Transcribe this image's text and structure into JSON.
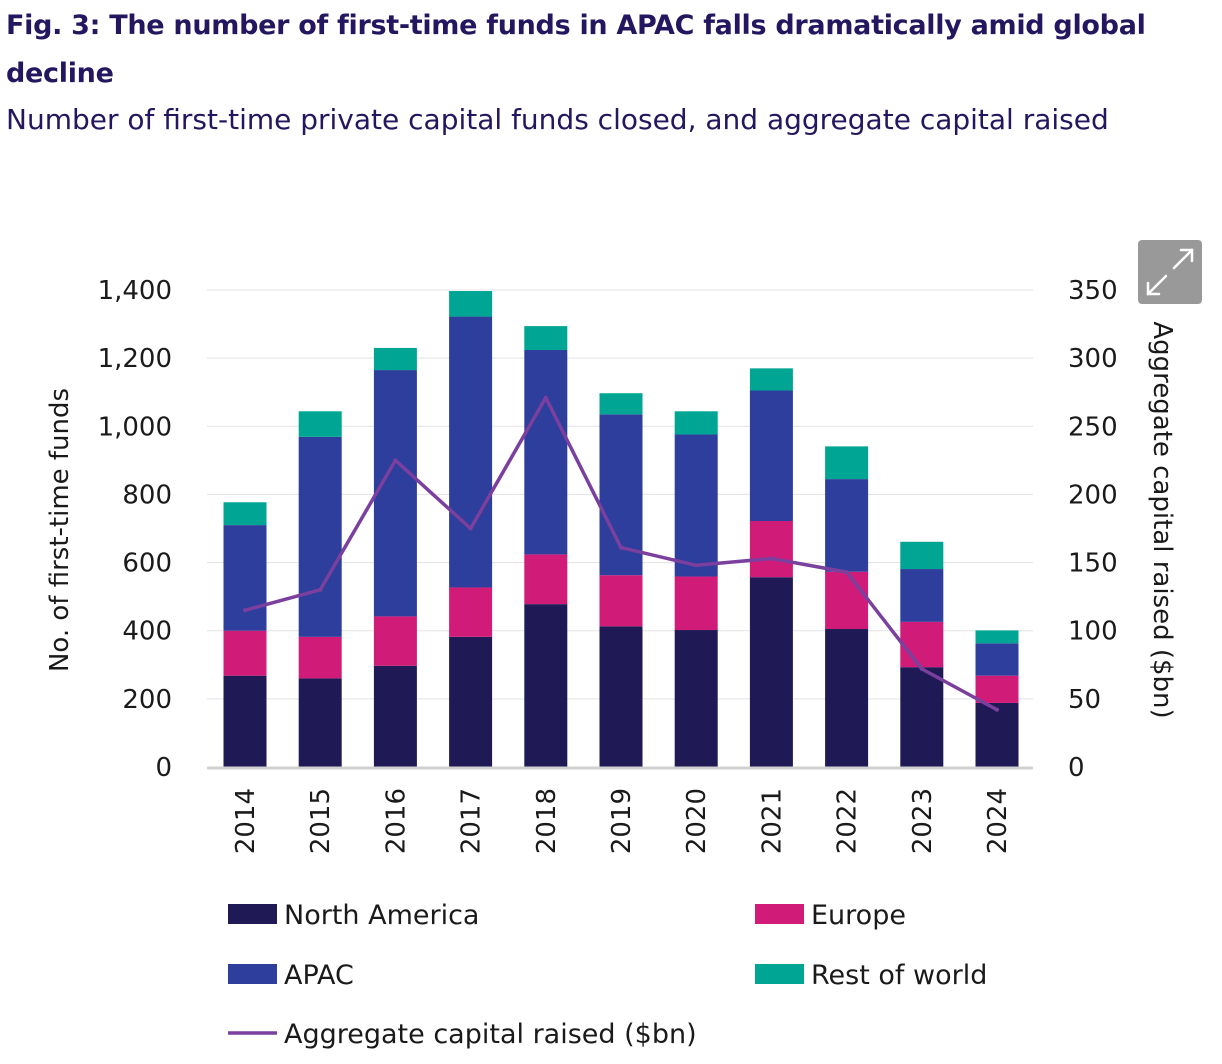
{
  "header": {
    "title": "Fig. 3: The number of first-time funds in APAC falls dramatically amid global decline",
    "subtitle": "Number of first-time private capital funds closed, and aggregate capital raised"
  },
  "chart_data": {
    "type": "bar",
    "stacked": true,
    "title": "Fig. 3: The number of first-time funds in APAC falls dramatically amid global decline",
    "subtitle": "Number of first-time private capital funds closed, and aggregate capital raised",
    "categories": [
      "2014",
      "2015",
      "2016",
      "2017",
      "2018",
      "2019",
      "2020",
      "2021",
      "2022",
      "2023",
      "2024"
    ],
    "series": [
      {
        "name": "North America",
        "color": "#1f1a56",
        "values": [
          268,
          260,
          297,
          382,
          478,
          413,
          402,
          557,
          405,
          293,
          188
        ]
      },
      {
        "name": "Europe",
        "color": "#d01c78",
        "values": [
          132,
          122,
          145,
          145,
          146,
          150,
          157,
          165,
          168,
          133,
          80
        ]
      },
      {
        "name": "APAC",
        "color": "#2d3e9c",
        "values": [
          310,
          587,
          723,
          795,
          600,
          472,
          417,
          383,
          272,
          155,
          95
        ]
      },
      {
        "name": "Rest of world",
        "color": "#00a693",
        "values": [
          67,
          75,
          65,
          75,
          70,
          62,
          68,
          65,
          96,
          80,
          38
        ]
      }
    ],
    "line_series": {
      "name": "Aggregate capital raised ($bn)",
      "color": "#7b3f9e",
      "axis": "right",
      "values": [
        115,
        130,
        225,
        175,
        271,
        161,
        148,
        153,
        143,
        72,
        42
      ]
    },
    "ylabel": "No. of first-time funds",
    "y2label": "Aggregate capital raised ($bn)",
    "ylim": [
      0,
      1400
    ],
    "y2lim": [
      0,
      350
    ],
    "yticks": [
      "0",
      "200",
      "400",
      "600",
      "800",
      "1,000",
      "1,200",
      "1,400"
    ],
    "y2ticks": [
      "0",
      "50",
      "100",
      "150",
      "200",
      "250",
      "300",
      "350"
    ],
    "grid": true,
    "legend": {
      "position": "bottom",
      "items": [
        "North America",
        "Europe",
        "APAC",
        "Rest of world",
        "Aggregate capital raised ($bn)"
      ]
    }
  },
  "controls": {
    "expand_icon": "expand-icon"
  }
}
